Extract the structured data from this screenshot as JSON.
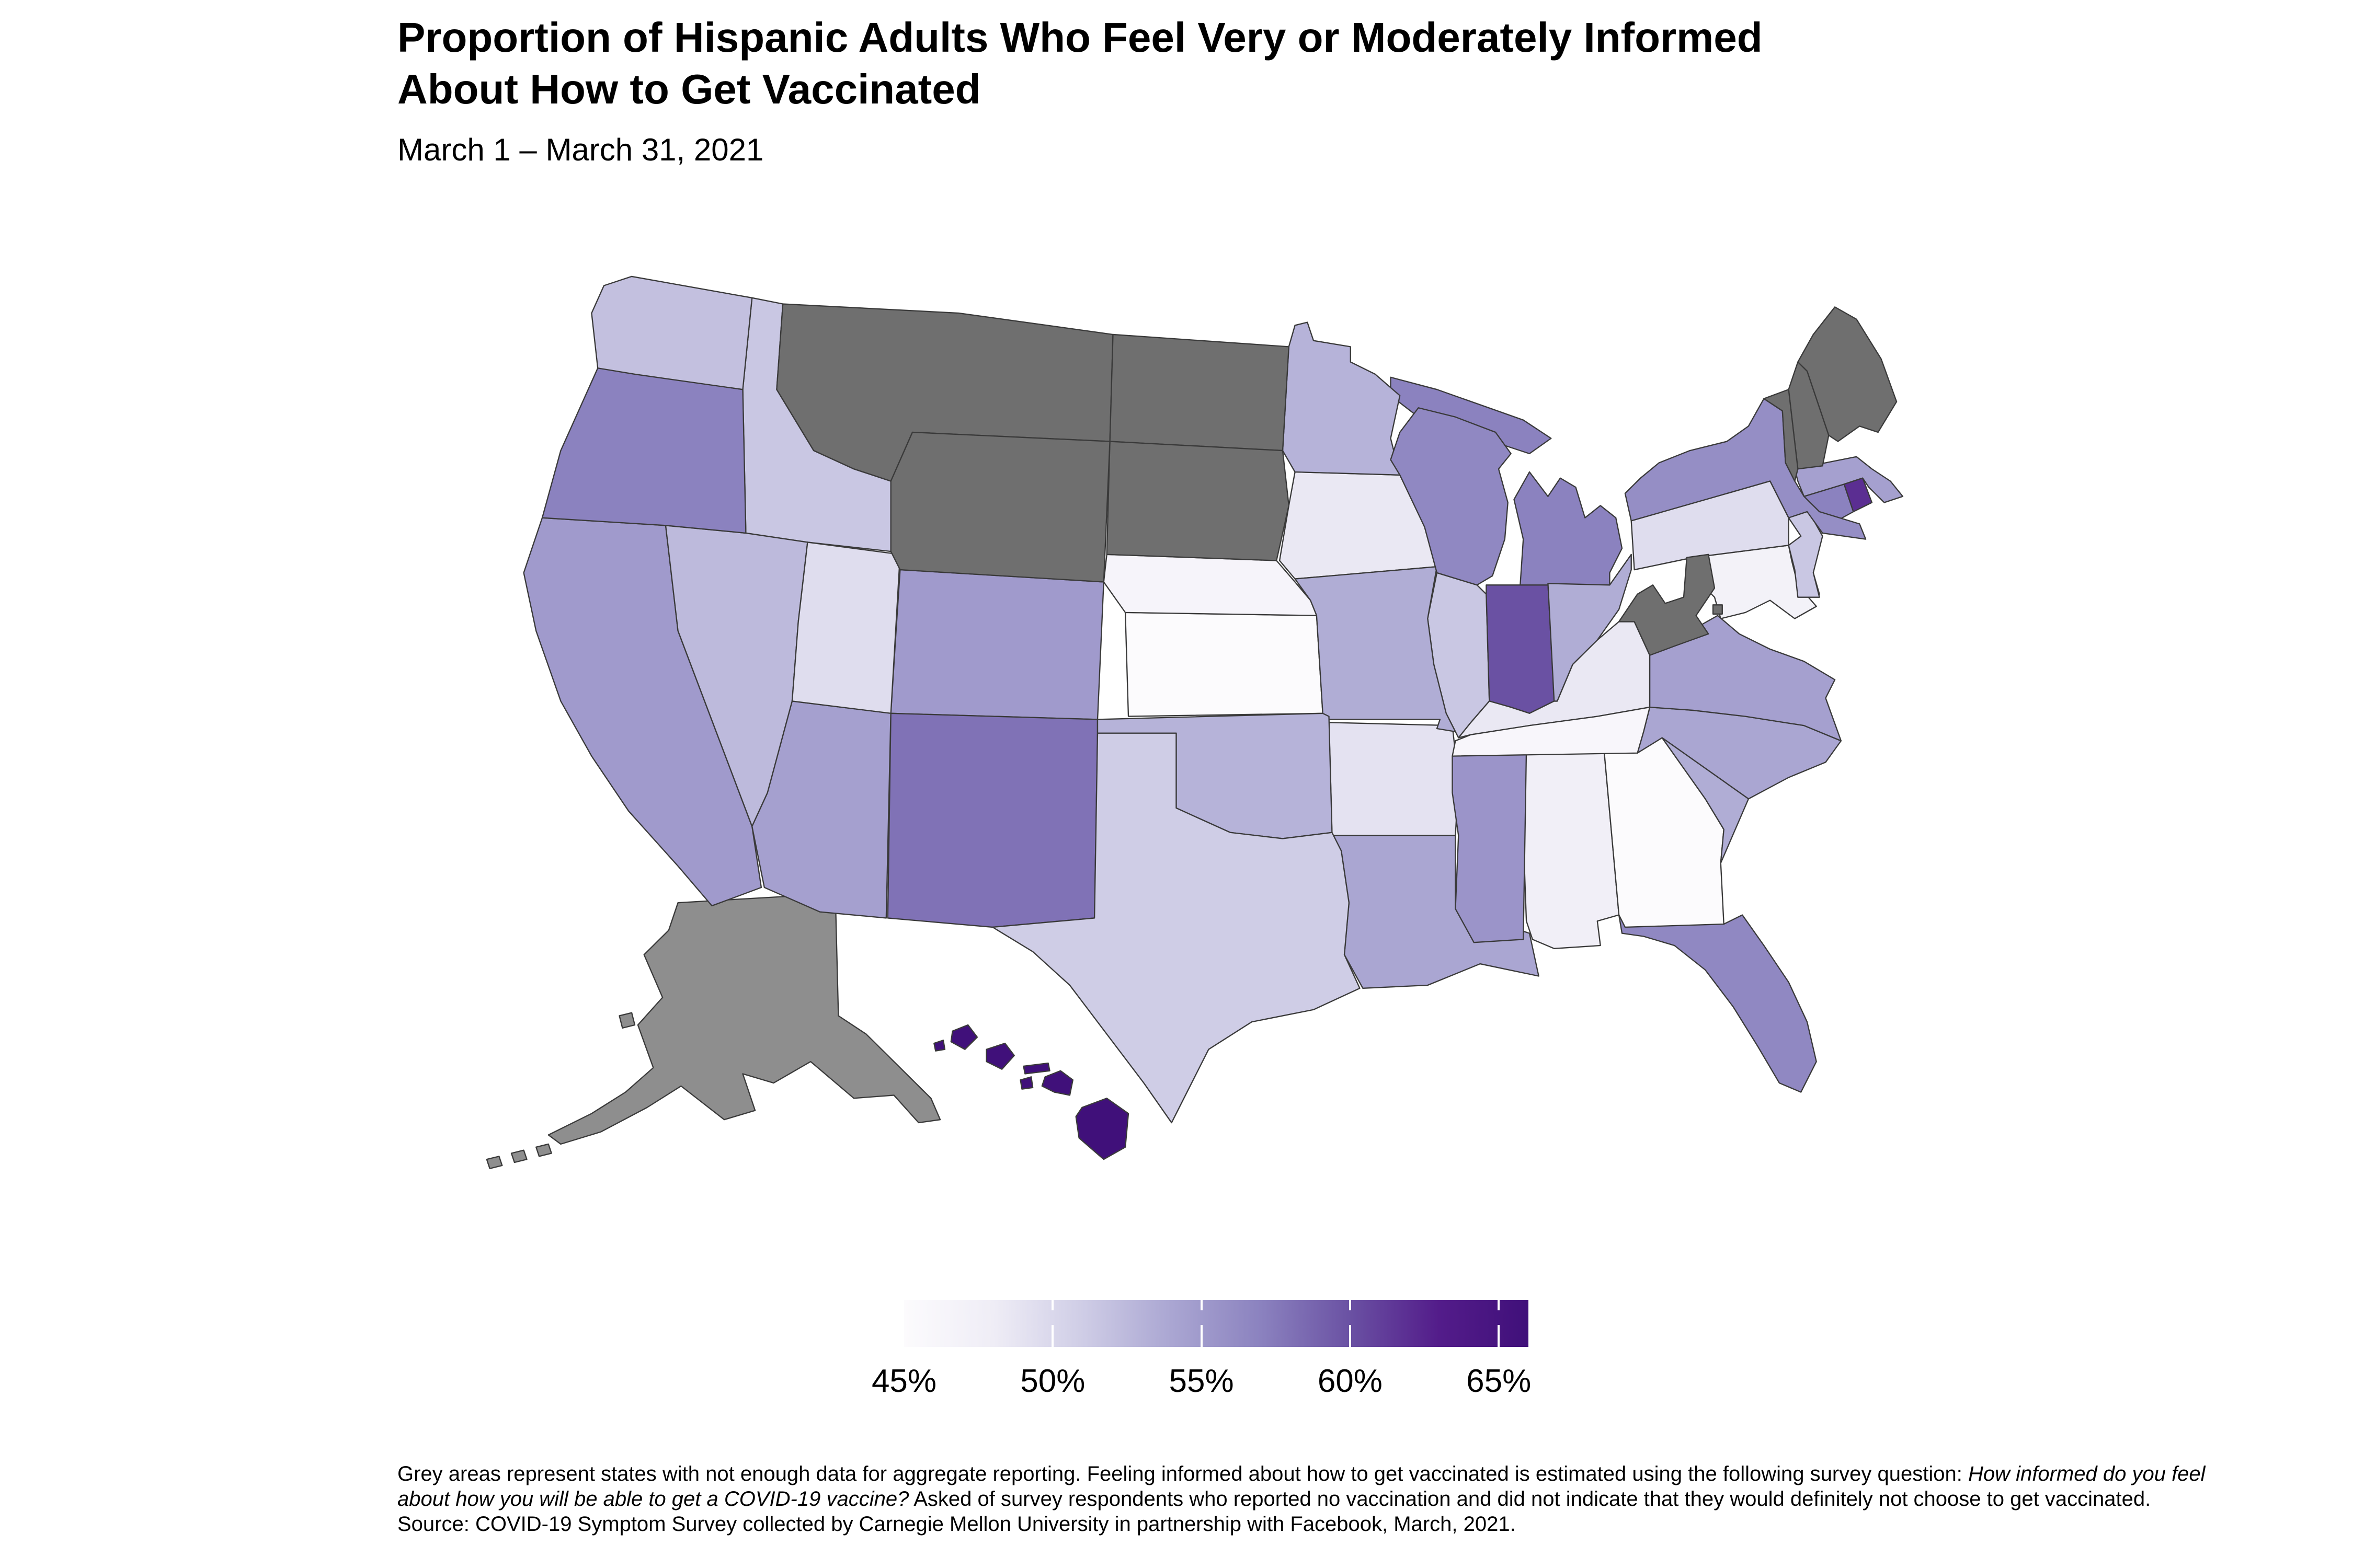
{
  "title": {
    "line1": "Proportion of Hispanic Adults Who Feel Very or Moderately Informed",
    "line2": "About How to Get Vaccinated"
  },
  "subtitle": "March 1 – March 31, 2021",
  "legend": {
    "min_value": 45,
    "max_value": 66,
    "tick_values": [
      50,
      55,
      60,
      65
    ],
    "tick_labels": [
      {
        "value": 45,
        "label": "45%"
      },
      {
        "value": 50,
        "label": "50%"
      },
      {
        "value": 55,
        "label": "55%"
      },
      {
        "value": 60,
        "label": "60%"
      },
      {
        "value": 65,
        "label": "65%"
      }
    ],
    "tick_color": "#ffffff",
    "gradient_stops": [
      [
        45,
        "#fcfbfd"
      ],
      [
        48,
        "#efedf6"
      ],
      [
        51,
        "#cfcde6"
      ],
      [
        54,
        "#aaa6d2"
      ],
      [
        57,
        "#8b82bf"
      ],
      [
        60,
        "#6a51a3"
      ],
      [
        63,
        "#531c8a"
      ],
      [
        66,
        "#40107a"
      ]
    ]
  },
  "footnote": {
    "part1": "Grey areas represent states with not enough data for aggregate reporting. Feeling informed about how to get vaccinated is estimated using the following survey question: ",
    "italic": "How informed do you feel about how you will be able to get a COVID-19 vaccine?",
    "part2": " Asked of survey respondents who reported no vaccination and did not indicate that they would definitely not choose to get vaccinated. Source: COVID-19 Symptom Survey collected by Carnegie Mellon University in partnership with Facebook, March, 2021."
  },
  "chart_data": {
    "type": "choropleth_map",
    "geography": "United States (states + DC), Albers-style layout with Alaska and Hawaii insets",
    "metric": "Share of Hispanic adults who feel very or moderately informed about how to get vaccinated",
    "unit": "percent",
    "period": "March 1 – March 31, 2021",
    "value_range_shown": [
      45,
      66
    ],
    "no_data_meaning": "not enough data for aggregate reporting",
    "no_data_color": "#6f6f6f",
    "alaska_no_data_color": "#8e8e8e",
    "border_color": "#3a3a3a",
    "states": [
      {
        "abbr": "AL",
        "name": "Alabama",
        "value": 47.5
      },
      {
        "abbr": "AK",
        "name": "Alaska",
        "value": null
      },
      {
        "abbr": "AZ",
        "name": "Arizona",
        "value": 54.5
      },
      {
        "abbr": "AR",
        "name": "Arkansas",
        "value": 49
      },
      {
        "abbr": "CA",
        "name": "California",
        "value": 55
      },
      {
        "abbr": "CO",
        "name": "Colorado",
        "value": 55
      },
      {
        "abbr": "CT",
        "name": "Connecticut",
        "value": 57
      },
      {
        "abbr": "DE",
        "name": "Delaware",
        "value": 58.5
      },
      {
        "abbr": "FL",
        "name": "Florida",
        "value": 56.5
      },
      {
        "abbr": "GA",
        "name": "Georgia",
        "value": 45
      },
      {
        "abbr": "HI",
        "name": "Hawaii",
        "value": 66
      },
      {
        "abbr": "ID",
        "name": "Idaho",
        "value": 51.5
      },
      {
        "abbr": "IL",
        "name": "Illinois",
        "value": 51.5
      },
      {
        "abbr": "IN",
        "name": "Indiana",
        "value": 60
      },
      {
        "abbr": "IA",
        "name": "Iowa",
        "value": 48.5
      },
      {
        "abbr": "KS",
        "name": "Kansas",
        "value": 45
      },
      {
        "abbr": "KY",
        "name": "Kentucky",
        "value": 48.5
      },
      {
        "abbr": "LA",
        "name": "Louisiana",
        "value": 54
      },
      {
        "abbr": "ME",
        "name": "Maine",
        "value": null
      },
      {
        "abbr": "MD",
        "name": "Maryland",
        "value": 47
      },
      {
        "abbr": "MA",
        "name": "Massachusetts",
        "value": 54.5
      },
      {
        "abbr": "MI",
        "name": "Michigan",
        "value": 57
      },
      {
        "abbr": "MN",
        "name": "Minnesota",
        "value": 53
      },
      {
        "abbr": "MS",
        "name": "Mississippi",
        "value": 55.5
      },
      {
        "abbr": "MO",
        "name": "Missouri",
        "value": 53.5
      },
      {
        "abbr": "MT",
        "name": "Montana",
        "value": null
      },
      {
        "abbr": "NE",
        "name": "Nebraska",
        "value": 46.5
      },
      {
        "abbr": "NV",
        "name": "Nevada",
        "value": 52.5
      },
      {
        "abbr": "NH",
        "name": "New Hampshire",
        "value": null
      },
      {
        "abbr": "NJ",
        "name": "New Jersey",
        "value": 51.5
      },
      {
        "abbr": "NM",
        "name": "New Mexico",
        "value": 58
      },
      {
        "abbr": "NY",
        "name": "New York",
        "value": 56
      },
      {
        "abbr": "NC",
        "name": "North Carolina",
        "value": 54
      },
      {
        "abbr": "ND",
        "name": "North Dakota",
        "value": null
      },
      {
        "abbr": "OH",
        "name": "Ohio",
        "value": 53.5
      },
      {
        "abbr": "OK",
        "name": "Oklahoma",
        "value": 53
      },
      {
        "abbr": "OR",
        "name": "Oregon",
        "value": 57
      },
      {
        "abbr": "PA",
        "name": "Pennsylvania",
        "value": 49.5
      },
      {
        "abbr": "RI",
        "name": "Rhode Island",
        "value": 62
      },
      {
        "abbr": "SC",
        "name": "South Carolina",
        "value": 53.5
      },
      {
        "abbr": "SD",
        "name": "South Dakota",
        "value": null
      },
      {
        "abbr": "TN",
        "name": "Tennessee",
        "value": 46
      },
      {
        "abbr": "TX",
        "name": "Texas",
        "value": 51
      },
      {
        "abbr": "UT",
        "name": "Utah",
        "value": 49.5
      },
      {
        "abbr": "VT",
        "name": "Vermont",
        "value": null
      },
      {
        "abbr": "VA",
        "name": "Virginia",
        "value": 54.5
      },
      {
        "abbr": "WA",
        "name": "Washington",
        "value": 52
      },
      {
        "abbr": "WV",
        "name": "West Virginia",
        "value": null
      },
      {
        "abbr": "WI",
        "name": "Wisconsin",
        "value": 56.5
      },
      {
        "abbr": "WY",
        "name": "Wyoming",
        "value": null
      },
      {
        "abbr": "DC",
        "name": "District of Columbia",
        "value": null
      }
    ]
  }
}
